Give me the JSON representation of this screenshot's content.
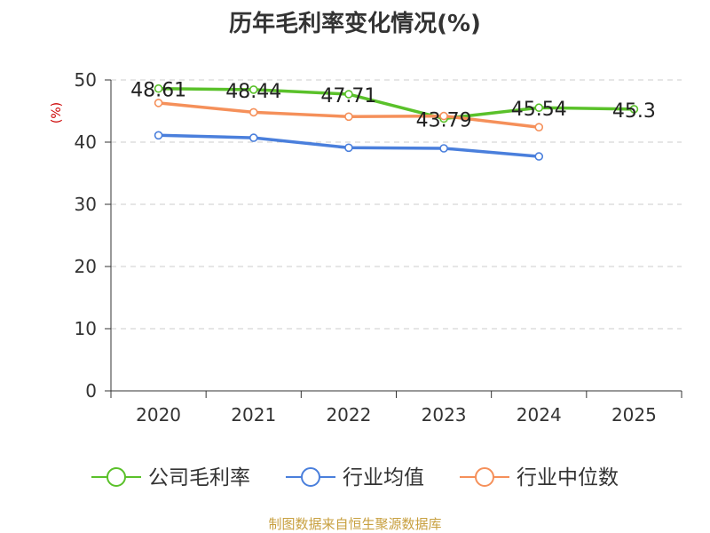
{
  "chart_data": {
    "type": "line",
    "title": "历年毛利率变化情况(%)",
    "ylabel": "(%)",
    "xlabel": "",
    "categories": [
      "2020",
      "2021",
      "2022",
      "2023",
      "2024",
      "2025"
    ],
    "ylim": [
      0,
      50
    ],
    "yticks": [
      "0",
      "10",
      "20",
      "30",
      "40",
      "50"
    ],
    "grid": "horizontal dashed",
    "legend_position": "bottom",
    "series": [
      {
        "name": "公司毛利率",
        "color": "#5ac12a",
        "values": [
          48.61,
          48.44,
          47.71,
          43.79,
          45.54,
          45.3
        ],
        "labels": [
          "48.61",
          "48.44",
          "47.71",
          "43.79",
          "45.54",
          "45.3"
        ]
      },
      {
        "name": "行业均值",
        "color": "#4a7fdc",
        "values": [
          41.1,
          40.7,
          39.1,
          39.0,
          37.7,
          null
        ]
      },
      {
        "name": "行业中位数",
        "color": "#f5905a",
        "values": [
          46.3,
          44.8,
          44.1,
          44.2,
          42.4,
          null
        ]
      }
    ],
    "source": "制图数据来自恒生聚源数据库"
  }
}
